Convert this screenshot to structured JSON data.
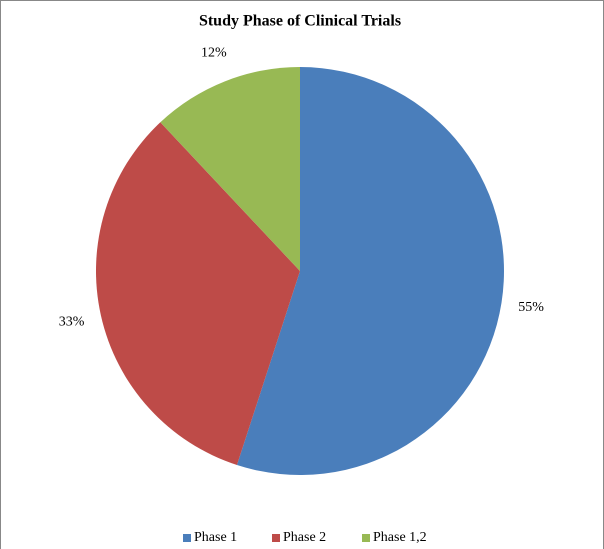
{
  "chart_data": {
    "type": "pie",
    "title": "Study Phase of Clinical Trials",
    "categories": [
      "Phase 1",
      "Phase 2",
      "Phase 1,2"
    ],
    "values": [
      55,
      33,
      12
    ],
    "value_labels": [
      "55%",
      "33%",
      "12%"
    ],
    "colors": [
      "#4a7ebb",
      "#be4b48",
      "#98b954"
    ],
    "legend": "bottom"
  }
}
